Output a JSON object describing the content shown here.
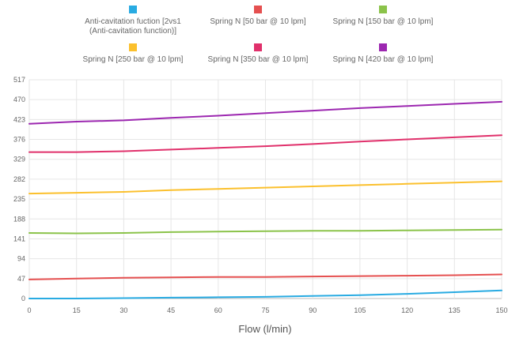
{
  "chart_data": {
    "type": "line",
    "xlabel": "Flow (l/min)",
    "ylabel": "",
    "xlim": [
      0,
      150
    ],
    "ylim": [
      0,
      517
    ],
    "x_ticks": [
      0,
      15,
      30,
      45,
      60,
      75,
      90,
      105,
      120,
      135,
      150
    ],
    "y_ticks": [
      0,
      47,
      94,
      141,
      188,
      235,
      282,
      329,
      376,
      423,
      470,
      517
    ],
    "grid": true,
    "legend_position": "top",
    "series": [
      {
        "name": "Anti-cavitation fuction [2vs1\n(Anti-cavitation function)]",
        "color": "#29abe2",
        "x": [
          0,
          15,
          30,
          45,
          60,
          75,
          90,
          105,
          120,
          135,
          150
        ],
        "y": [
          0,
          0,
          1,
          2,
          3,
          4,
          6,
          8,
          11,
          15,
          19
        ]
      },
      {
        "name": "Spring N [50 bar @ 10 lpm]",
        "color": "#e55050",
        "x": [
          0,
          15,
          30,
          45,
          60,
          75,
          90,
          105,
          120,
          135,
          150
        ],
        "y": [
          45,
          47,
          49,
          50,
          51,
          51,
          52,
          53,
          54,
          55,
          57
        ]
      },
      {
        "name": "Spring N [150 bar @ 10 lpm]",
        "color": "#8bc34a",
        "x": [
          0,
          15,
          30,
          45,
          60,
          75,
          90,
          105,
          120,
          135,
          150
        ],
        "y": [
          155,
          154,
          155,
          157,
          158,
          159,
          160,
          160,
          161,
          162,
          163
        ]
      },
      {
        "name": "Spring N [250 bar @ 10 lpm]",
        "color": "#fbc02d",
        "x": [
          0,
          15,
          30,
          45,
          60,
          75,
          90,
          105,
          120,
          135,
          150
        ],
        "y": [
          248,
          250,
          252,
          256,
          259,
          262,
          265,
          268,
          271,
          274,
          277
        ]
      },
      {
        "name": "Spring N [350 bar @ 10 lpm]",
        "color": "#e0306b",
        "x": [
          0,
          15,
          30,
          45,
          60,
          75,
          90,
          105,
          120,
          135,
          150
        ],
        "y": [
          346,
          346,
          348,
          352,
          356,
          360,
          365,
          371,
          376,
          381,
          386
        ]
      },
      {
        "name": "Spring N [420 bar @ 10 lpm]",
        "color": "#9c27b0",
        "x": [
          0,
          15,
          30,
          45,
          60,
          75,
          90,
          105,
          120,
          135,
          150
        ],
        "y": [
          413,
          418,
          421,
          427,
          432,
          438,
          444,
          450,
          455,
          460,
          465
        ]
      }
    ]
  }
}
